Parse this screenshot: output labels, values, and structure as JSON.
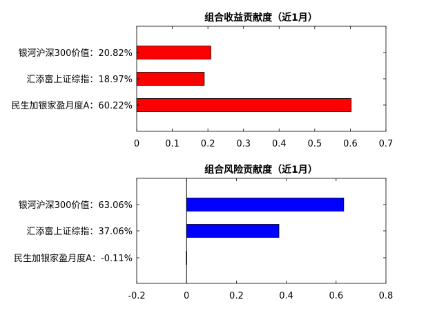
{
  "chart_data": [
    {
      "type": "bar",
      "orientation": "horizontal",
      "title": "组合收益贡献度（近1月）",
      "categories": [
        "银河沪深300价值：20.82%",
        "汇添富上证综指：18.97%",
        "民生加银家盈月度A：60.22%"
      ],
      "values": [
        0.2082,
        0.1897,
        0.6022
      ],
      "xlim": [
        0,
        0.7
      ],
      "xticks": [
        "0",
        "0.1",
        "0.2",
        "0.3",
        "0.4",
        "0.5",
        "0.6",
        "0.7"
      ],
      "xtick_values": [
        0,
        0.1,
        0.2,
        0.3,
        0.4,
        0.5,
        0.6,
        0.7
      ],
      "bar_color": "#ff0000",
      "grid": false
    },
    {
      "type": "bar",
      "orientation": "horizontal",
      "title": "组合风险贡献度（近1月）",
      "categories": [
        "银河沪深300价值：63.06%",
        "汇添富上证综指：37.06%",
        "民生加银家盈月度A：-0.11%"
      ],
      "values": [
        0.6306,
        0.3706,
        -0.0011
      ],
      "xlim": [
        -0.2,
        0.8
      ],
      "xticks": [
        "-0.2",
        "0",
        "0.2",
        "0.4",
        "0.6",
        "0.8"
      ],
      "xtick_values": [
        -0.2,
        0,
        0.2,
        0.4,
        0.6,
        0.8
      ],
      "bar_color": "#0000ff",
      "grid": false
    }
  ]
}
